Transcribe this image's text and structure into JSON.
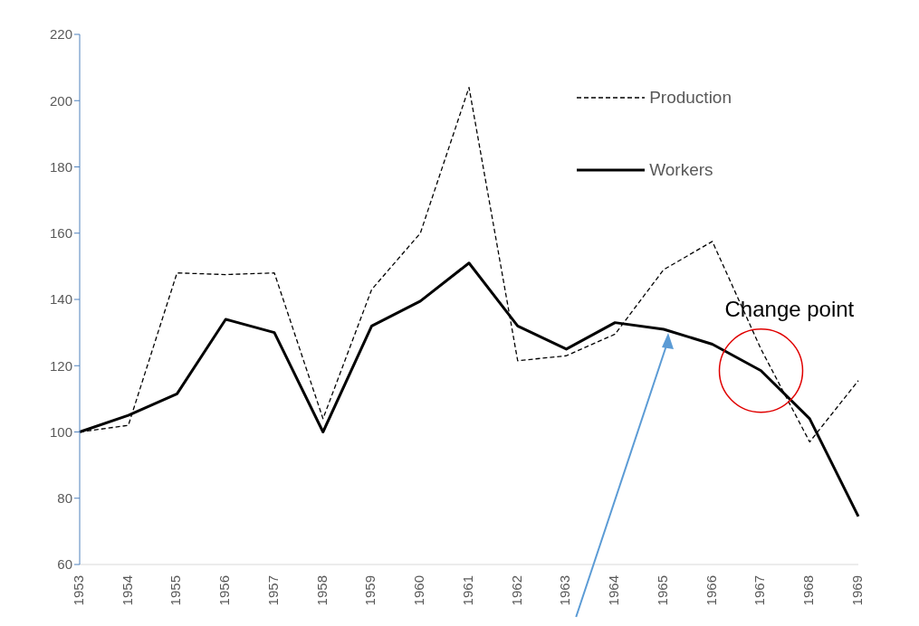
{
  "chart_data": {
    "type": "line",
    "categories": [
      "1953",
      "1954",
      "1955",
      "1956",
      "1957",
      "1958",
      "1959",
      "1960",
      "1961",
      "1962",
      "1963",
      "1964",
      "1965",
      "1966",
      "1967",
      "1968",
      "1969"
    ],
    "series": [
      {
        "name": "Production",
        "color": "#000000",
        "line_style": "dashed",
        "values": [
          100,
          102,
          148,
          147.5,
          148,
          104,
          143,
          160,
          204,
          121.5,
          123,
          129.5,
          149,
          157.5,
          125,
          97,
          115.5
        ]
      },
      {
        "name": "Workers",
        "color": "#000000",
        "line_style": "solid",
        "values": [
          100,
          105,
          111.5,
          134,
          130,
          100,
          132,
          139.5,
          151,
          132,
          125,
          133,
          131,
          126.5,
          118.5,
          104,
          74.5
        ]
      }
    ],
    "ylim": [
      60,
      220
    ],
    "yticks": [
      60,
      80,
      100,
      120,
      140,
      160,
      180,
      200,
      220
    ],
    "legend": "top right",
    "marker": "none",
    "annotations": [
      {
        "text": "Change point",
        "x": "1967",
        "y": 118.5
      }
    ]
  }
}
